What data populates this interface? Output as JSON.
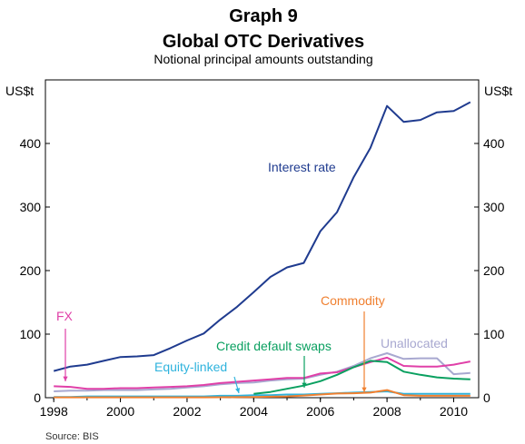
{
  "chart_data": {
    "type": "line",
    "graph_label": "Graph 9",
    "title": "Global OTC Derivatives",
    "subtitle": "Notional principal amounts outstanding",
    "y_unit_left": "US$t",
    "y_unit_right": "US$t",
    "source": "Source: BIS",
    "x_ticks": [
      "1998",
      "2000",
      "2002",
      "2004",
      "2006",
      "2008",
      "2010"
    ],
    "y_ticks": [
      "0",
      "100",
      "200",
      "300",
      "400"
    ],
    "xlim": [
      1997.75,
      2010.75
    ],
    "ylim": [
      0,
      500
    ],
    "x": [
      1998.0,
      1998.5,
      1999.0,
      1999.5,
      2000.0,
      2000.5,
      2001.0,
      2001.5,
      2002.0,
      2002.5,
      2003.0,
      2003.5,
      2004.0,
      2004.5,
      2005.0,
      2005.5,
      2006.0,
      2006.5,
      2007.0,
      2007.5,
      2008.0,
      2008.5,
      2009.0,
      2009.5,
      2010.0,
      2010.5
    ],
    "series": [
      {
        "name": "Interest rate",
        "color": "#1f3b8f",
        "label_color": "#1f3b8f",
        "values": [
          42,
          49,
          52,
          58,
          64,
          65,
          67,
          78,
          90,
          101,
          123,
          143,
          166,
          190,
          205,
          212,
          262,
          292,
          347,
          393,
          459,
          434,
          437,
          449,
          451,
          465
        ]
      },
      {
        "name": "FX",
        "color": "#e040a8",
        "label_color": "#e040a8",
        "values": [
          18,
          17,
          14,
          14,
          15,
          15,
          16,
          17,
          18,
          20,
          23,
          25,
          27,
          29,
          31,
          31,
          38,
          40,
          48,
          56,
          63,
          50,
          49,
          49,
          52,
          57
        ]
      },
      {
        "name": "Unallocated",
        "color": "#a8a8d0",
        "label_color": "#a8a8d0",
        "values": [
          10,
          11,
          11,
          12,
          12,
          12,
          13,
          14,
          16,
          18,
          21,
          23,
          24,
          27,
          29,
          30,
          36,
          41,
          50,
          62,
          70,
          61,
          62,
          62,
          37,
          39
        ]
      },
      {
        "name": "Credit default swaps",
        "color": "#0aa060",
        "label_color": "#0aa060",
        "values": [
          null,
          null,
          null,
          null,
          null,
          null,
          null,
          null,
          null,
          null,
          null,
          null,
          6,
          9,
          14,
          19,
          26,
          36,
          48,
          58,
          56,
          41,
          36,
          32,
          30,
          29
        ]
      },
      {
        "name": "Equity-linked",
        "color": "#2fb3dd",
        "label_color": "#2fb3dd",
        "values": [
          1,
          1,
          2,
          2,
          2,
          2,
          2,
          2,
          2,
          2,
          3,
          3,
          4,
          4,
          5,
          5,
          6,
          7,
          8,
          9,
          10,
          6,
          6,
          6,
          6,
          6
        ]
      },
      {
        "name": "Commodity",
        "color": "#f08030",
        "label_color": "#f08030",
        "values": [
          0.5,
          0.5,
          0.5,
          0.5,
          0.5,
          0.5,
          0.5,
          0.5,
          0.5,
          0.5,
          0.7,
          0.8,
          1,
          1.5,
          2,
          3.5,
          5,
          6.5,
          7,
          8,
          12,
          4,
          3,
          3,
          3,
          3
        ]
      }
    ],
    "annotations": [
      {
        "series": "Interest rate",
        "text": "Interest rate"
      },
      {
        "series": "FX",
        "text": "FX"
      },
      {
        "series": "Commodity",
        "text": "Commodity"
      },
      {
        "series": "Unallocated",
        "text": "Unallocated"
      },
      {
        "series": "Credit default swaps",
        "text": "Credit default swaps"
      },
      {
        "series": "Equity-linked",
        "text": "Equity-linked"
      }
    ],
    "grid": false,
    "legend": "none"
  }
}
